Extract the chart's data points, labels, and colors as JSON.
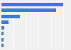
{
  "values": [
    100,
    88,
    30,
    11,
    5,
    4,
    4,
    3
  ],
  "bar_color": "#3b7fd4",
  "background_color": "#f0f0f0",
  "plot_bg_color": "#f0f0f0",
  "grid_color": "#ffffff",
  "xlim": [
    0,
    110
  ],
  "figsize": [
    1.0,
    0.71
  ],
  "dpi": 100,
  "bar_height": 0.6
}
